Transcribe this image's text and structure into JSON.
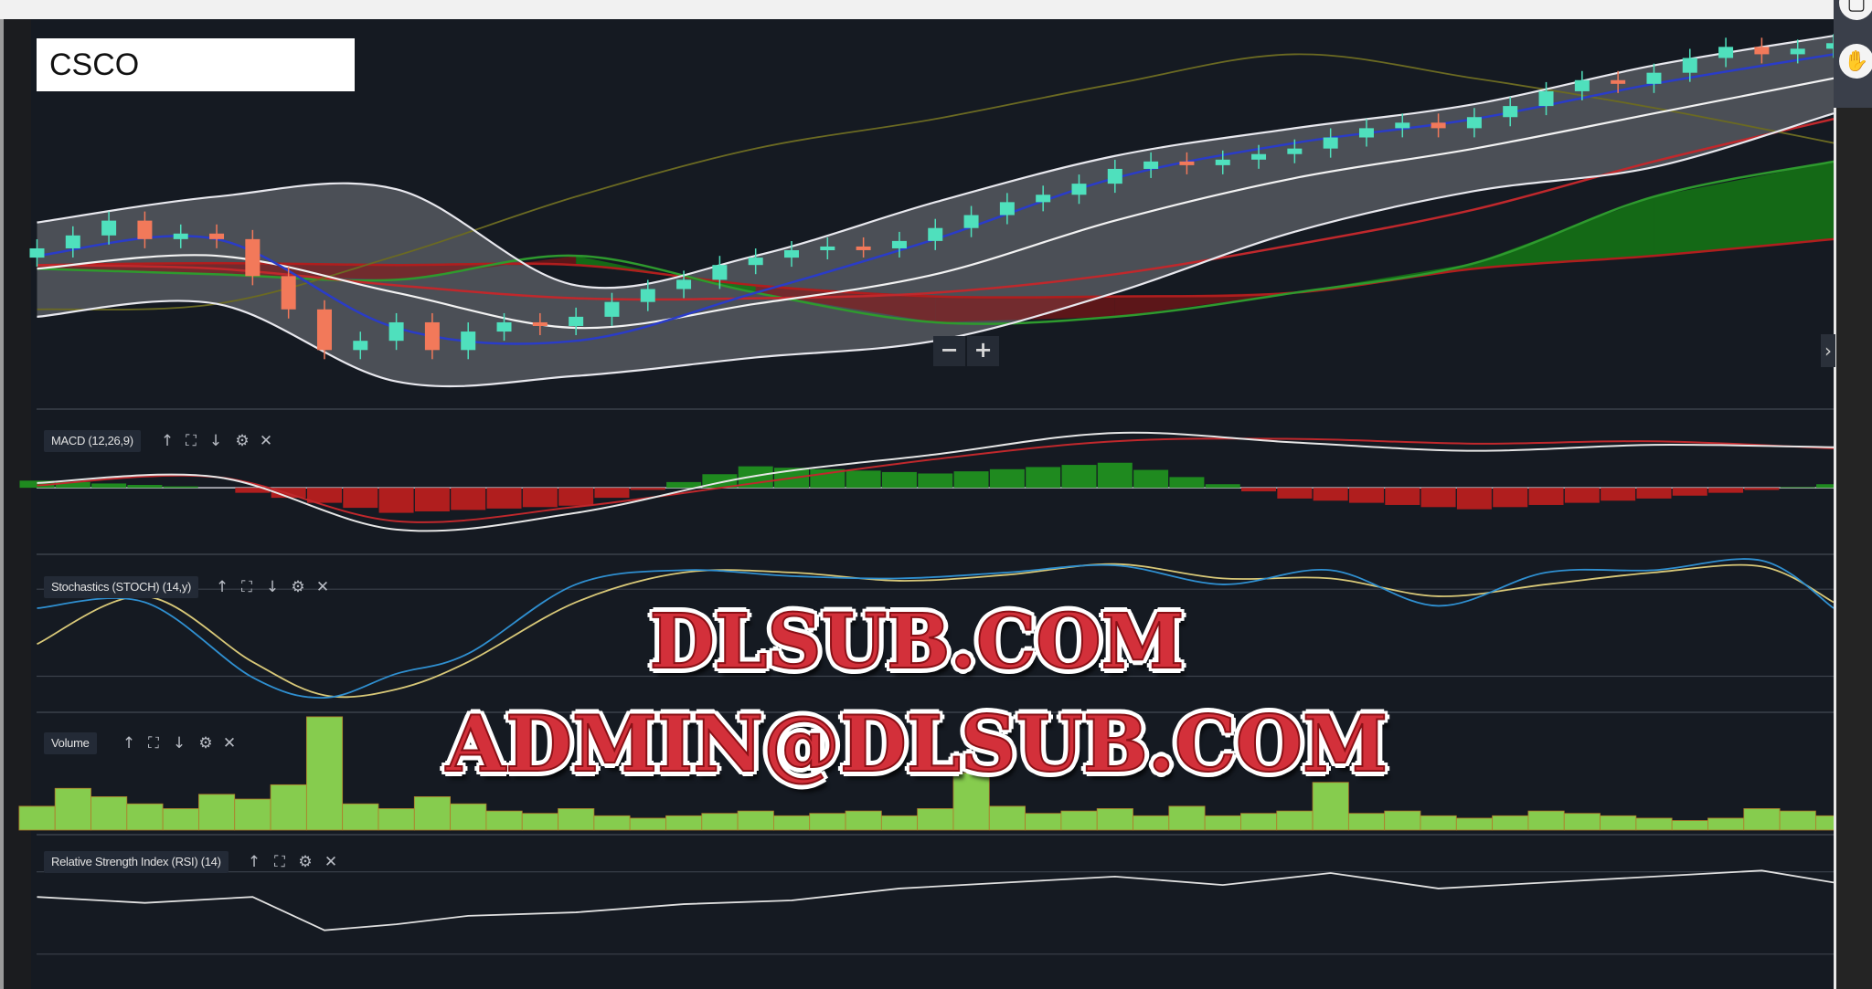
{
  "symbol": "CSCO",
  "panes": {
    "macd": {
      "label": "MACD (12,26,9)"
    },
    "stoch": {
      "label": "Stochastics (STOCH) (14,y)"
    },
    "volume": {
      "label": "Volume"
    },
    "rsi": {
      "label": "Relative Strength Index (RSI) (14)"
    }
  },
  "pane_icons": {
    "up": "↑",
    "fullscreen": "⛶",
    "down": "↓",
    "settings": "⚙",
    "close": "✕"
  },
  "zoom": {
    "minus": "−",
    "plus": "+"
  },
  "next_arrow": "›",
  "right_tools": {
    "square_icon": "▢",
    "hand_icon": "✋"
  },
  "watermark": {
    "line1": "DLSUB.COM",
    "line2": "ADMIN@DLSUB.COM"
  },
  "colors": {
    "background": "#151a22",
    "bull_candle": "#4fe0bd",
    "bear_candle": "#f2795a",
    "bollinger_band": "#e8e8ee",
    "fast_ma": "#2a3cc8",
    "middle_ma": "#f2f2f2",
    "chikou": "#6b6a22",
    "cloud_span_a": "#2e9a2e",
    "cloud_span_b": "#b01e1e",
    "trend_ma": "#c0282c",
    "macd_line": "#e6e6e6",
    "macd_signal": "#c0282c",
    "stoch_k": "#2f8fd0",
    "stoch_d": "#d8c878",
    "volume": "#86cc4e",
    "rsi": "#e0e0e0"
  },
  "chart_data": {
    "type": "candlestick",
    "title": "CSCO",
    "grid": false,
    "price": {
      "open": [
        48.0,
        48.5,
        49.2,
        50.0,
        49.0,
        49.3,
        49.0,
        47.0,
        45.2,
        43.0,
        43.5,
        44.5,
        43.0,
        44.0,
        44.5,
        44.3,
        44.8,
        45.6,
        46.3,
        46.8,
        47.6,
        48.0,
        48.4,
        48.6,
        48.5,
        48.9,
        49.6,
        50.3,
        51.0,
        51.4,
        52.0,
        52.8,
        53.2,
        53.0,
        53.3,
        53.6,
        53.9,
        54.5,
        55.0,
        55.3,
        55.0,
        55.6,
        56.2,
        57.0,
        57.6,
        57.4,
        58.0,
        58.8,
        59.4,
        59.0,
        59.3
      ],
      "close": [
        48.5,
        49.2,
        50.0,
        49.0,
        49.3,
        49.0,
        47.0,
        45.2,
        43.0,
        43.5,
        44.5,
        43.0,
        44.0,
        44.5,
        44.3,
        44.8,
        45.6,
        46.3,
        46.8,
        47.6,
        48.0,
        48.4,
        48.6,
        48.5,
        48.9,
        49.6,
        50.3,
        51.0,
        51.4,
        52.0,
        52.8,
        53.2,
        53.0,
        53.3,
        53.6,
        53.9,
        54.5,
        55.0,
        55.3,
        55.0,
        55.6,
        56.2,
        57.0,
        57.6,
        57.4,
        58.0,
        58.8,
        59.4,
        59.0,
        59.3,
        59.6
      ]
    },
    "overlay_bars": [
      0,
      5,
      10,
      15,
      20,
      25,
      30,
      35,
      40,
      45,
      50
    ],
    "overlays": [
      {
        "key": "bollinger_upper",
        "values": [
          49.9,
          51.3,
          51.7,
          46.5,
          48.1,
          51.0,
          53.5,
          55.0,
          56.3,
          58.4,
          60.0
        ]
      },
      {
        "key": "bollinger_lower",
        "values": [
          44.8,
          45.5,
          41.3,
          41.6,
          42.6,
          43.5,
          46.1,
          49.4,
          51.6,
          52.9,
          55.8
        ]
      },
      {
        "key": "middle_ma",
        "values": [
          47.4,
          48.1,
          46.1,
          44.2,
          45.5,
          47.1,
          50.0,
          52.3,
          53.9,
          55.8,
          57.7
        ]
      },
      {
        "key": "fast_ma",
        "values": [
          48.1,
          49.0,
          44.2,
          43.5,
          46.1,
          49.0,
          52.3,
          54.2,
          55.5,
          57.4,
          59.0
        ]
      },
      {
        "key": "chikou",
        "values": [
          45.2,
          45.5,
          48.1,
          51.3,
          53.9,
          55.5,
          57.4,
          59.0,
          57.7,
          56.1,
          54.2
        ]
      },
      {
        "key": "cloud_span_a",
        "values": [
          47.4,
          47.1,
          46.8,
          48.1,
          46.1,
          44.5,
          44.8,
          46.1,
          47.7,
          51.3,
          53.2
        ]
      },
      {
        "key": "cloud_span_b",
        "values": [
          47.6,
          47.7,
          47.6,
          47.6,
          46.5,
          45.9,
          45.9,
          46.1,
          47.4,
          48.1,
          49.0
        ]
      },
      {
        "key": "trend_ma",
        "values": [
          47.6,
          47.4,
          46.5,
          45.8,
          45.8,
          46.1,
          47.1,
          48.7,
          50.6,
          53.2,
          55.5
        ]
      }
    ],
    "macd": {
      "bars": [
        0,
        5,
        10,
        15,
        20,
        25,
        30,
        35,
        40,
        45,
        50
      ],
      "macd": [
        0.4,
        0.9,
        -3.5,
        -2.1,
        1.0,
        2.8,
        4.6,
        3.8,
        3.1,
        3.6,
        3.4
      ],
      "signal": [
        0.2,
        0.9,
        -2.8,
        -1.6,
        0.4,
        2.4,
        3.9,
        4.1,
        3.7,
        3.9,
        3.3
      ]
    },
    "stoch": {
      "levels": [
        80,
        20
      ],
      "bars": [
        0,
        3,
        6,
        8,
        10,
        12,
        15,
        18,
        21,
        24,
        27,
        30,
        33,
        36,
        39,
        42,
        45,
        48,
        50
      ],
      "k": [
        66.9,
        71,
        19.2,
        5.2,
        21.7,
        35.6,
        83.3,
        93.1,
        89,
        87.4,
        91.5,
        96.4,
        83.3,
        93.1,
        68.5,
        91.5,
        93.1,
        99.7,
        66.9
      ],
      "d": [
        42.2,
        75.1,
        29.9,
        6.9,
        11,
        29.9,
        71,
        91.5,
        91.5,
        85.8,
        89.9,
        97.3,
        87.4,
        87.4,
        75.1,
        83.3,
        91.5,
        95.6,
        71
      ]
    },
    "volume": [
      20,
      35,
      28,
      22,
      18,
      30,
      26,
      38,
      95,
      22,
      18,
      28,
      22,
      16,
      14,
      18,
      12,
      10,
      12,
      14,
      16,
      12,
      14,
      16,
      12,
      18,
      48,
      20,
      14,
      16,
      18,
      12,
      20,
      12,
      14,
      16,
      40,
      14,
      16,
      12,
      10,
      12,
      16,
      14,
      12,
      10,
      8,
      10,
      18,
      16,
      12
    ],
    "rsi": {
      "levels": [
        70,
        30
      ],
      "bars": [
        0,
        3,
        6,
        8,
        10,
        12,
        15,
        18,
        21,
        24,
        27,
        30,
        33,
        36,
        39,
        42,
        45,
        48,
        50
      ],
      "values": [
        57.8,
        54.9,
        57.8,
        41.6,
        44.5,
        48.6,
        50.3,
        54.3,
        56.1,
        61.9,
        64.8,
        67.7,
        63.6,
        69.4,
        61.9,
        64.8,
        67.7,
        70.6,
        64.8
      ]
    }
  }
}
